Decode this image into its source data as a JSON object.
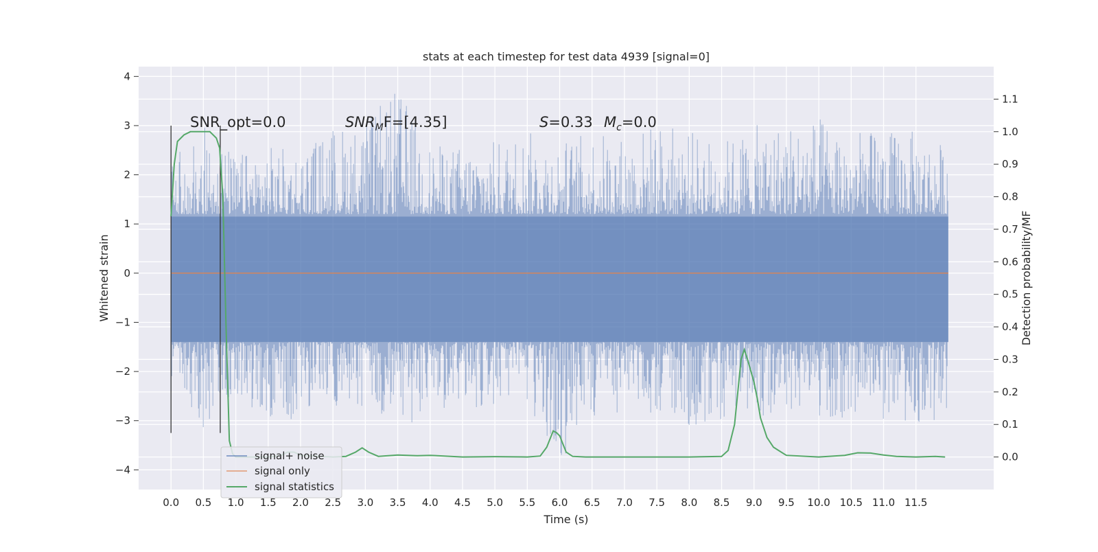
{
  "chart_data": {
    "type": "line",
    "title": "stats at each timestep for test data 4939 [signal=0]",
    "xlabel": "Time (s)",
    "ylabel": "Whitened strain",
    "y2label": "Detection probability/MF",
    "xlim": [
      -0.5,
      12.7
    ],
    "ylim": [
      -4.4,
      4.2
    ],
    "y2lim": [
      -0.1,
      1.2
    ],
    "x_ticks": [
      0.0,
      0.5,
      1.0,
      1.5,
      2.0,
      2.5,
      3.0,
      3.5,
      4.0,
      4.5,
      5.0,
      5.5,
      6.0,
      6.5,
      7.0,
      7.5,
      8.0,
      8.5,
      9.0,
      9.5,
      10.0,
      10.5,
      11.0,
      11.5
    ],
    "x_tick_labels": [
      "0.0",
      "0.5",
      "1.0",
      "1.5",
      "2.0",
      "2.5",
      "3.0",
      "3.5",
      "4.0",
      "4.5",
      "5.0",
      "5.5",
      "6.0",
      "6.5",
      "7.0",
      "7.5",
      "8.0",
      "8.5",
      "9.0",
      "9.5",
      "10.0",
      "10.5",
      "11.0",
      "11.5"
    ],
    "y_ticks": [
      -4,
      -3,
      -2,
      -1,
      0,
      1,
      2,
      3,
      4
    ],
    "y_tick_labels": [
      "−4",
      "−3",
      "−2",
      "−1",
      "0",
      "1",
      "2",
      "3",
      "4"
    ],
    "y2_ticks": [
      0.0,
      0.1,
      0.2,
      0.3,
      0.4,
      0.5,
      0.6,
      0.7,
      0.8,
      0.9,
      1.0,
      1.1
    ],
    "y2_tick_labels": [
      "0.0",
      "0.1",
      "0.2",
      "0.3",
      "0.4",
      "0.5",
      "0.6",
      "0.7",
      "0.8",
      "0.9",
      "1.0",
      "1.1"
    ],
    "grid": true,
    "legend_position": "lower-left",
    "colors": {
      "noise": "#4c72b0",
      "signal": "#dd8452",
      "stats": "#55a868",
      "background": "#eaeaf2",
      "grid": "#ffffff",
      "vline": "#333333"
    },
    "annotations": {
      "snr_opt": "SNR_opt=0.0",
      "snr_mf_prefix": "SNR",
      "snr_mf_sub": "M",
      "snr_mf_suffix": "F=[4.35]",
      "s_label": "S",
      "s_value": "=0.33",
      "mc_label": "M",
      "mc_sub": "c",
      "mc_value": "=0.0"
    },
    "vlines_x": [
      0.0,
      0.76
    ],
    "vlines_ylim": [
      -3.25,
      3.0
    ],
    "series": [
      {
        "name": "signal+ noise",
        "axis": "left",
        "x_range": [
          0.0,
          12.0
        ],
        "description_kind": "noise",
        "envelope": {
          "x": [
            0.0,
            0.5,
            1.0,
            1.5,
            2.0,
            2.5,
            3.0,
            3.5,
            4.0,
            4.5,
            5.0,
            5.5,
            6.0,
            6.5,
            7.0,
            7.5,
            8.0,
            8.5,
            9.0,
            9.5,
            10.0,
            10.5,
            11.0,
            11.5,
            12.0
          ],
          "upper": [
            2.4,
            3.0,
            2.4,
            2.6,
            2.5,
            3.0,
            3.1,
            3.8,
            2.6,
            2.6,
            2.7,
            2.9,
            2.7,
            2.9,
            2.8,
            3.1,
            2.9,
            2.7,
            3.0,
            3.1,
            3.2,
            2.9,
            2.9,
            2.9,
            2.6
          ],
          "lower": [
            -2.1,
            -3.3,
            -2.6,
            -3.0,
            -3.0,
            -2.7,
            -2.9,
            -3.3,
            -2.8,
            -2.8,
            -2.7,
            -2.8,
            -4.1,
            -3.0,
            -2.8,
            -2.9,
            -3.2,
            -3.0,
            -3.0,
            -2.9,
            -2.9,
            -3.0,
            -3.0,
            -3.1,
            -2.9
          ]
        }
      },
      {
        "name": "signal only",
        "axis": "left",
        "x": [
          0.0,
          12.0
        ],
        "y": [
          0.0,
          0.0
        ]
      },
      {
        "name": "signal statistics",
        "axis": "right",
        "x": [
          0.0,
          0.05,
          0.1,
          0.2,
          0.3,
          0.5,
          0.6,
          0.7,
          0.75,
          0.8,
          0.85,
          0.9,
          0.95,
          1.0,
          1.2,
          1.5,
          1.7,
          1.8,
          1.9,
          2.0,
          2.2,
          2.5,
          2.7,
          2.85,
          2.95,
          3.05,
          3.2,
          3.5,
          3.8,
          4.0,
          4.5,
          5.0,
          5.5,
          5.7,
          5.8,
          5.9,
          5.95,
          6.0,
          6.05,
          6.1,
          6.2,
          6.4,
          7.0,
          8.0,
          8.5,
          8.6,
          8.7,
          8.8,
          8.85,
          8.9,
          9.0,
          9.05,
          9.1,
          9.2,
          9.3,
          9.5,
          10.0,
          10.4,
          10.6,
          10.8,
          11.0,
          11.2,
          11.5,
          11.8,
          11.95
        ],
        "y": [
          0.74,
          0.9,
          0.97,
          0.99,
          1.0,
          1.0,
          1.0,
          0.98,
          0.95,
          0.8,
          0.4,
          0.05,
          0.01,
          0.0,
          0.0,
          0.0,
          0.005,
          0.015,
          0.015,
          0.005,
          0.003,
          0.0,
          0.002,
          0.015,
          0.028,
          0.015,
          0.002,
          0.006,
          0.004,
          0.005,
          0.0,
          0.001,
          0.0,
          0.003,
          0.03,
          0.08,
          0.075,
          0.065,
          0.04,
          0.015,
          0.002,
          0.0,
          0.0,
          0.0,
          0.002,
          0.02,
          0.1,
          0.3,
          0.33,
          0.3,
          0.23,
          0.18,
          0.12,
          0.06,
          0.03,
          0.005,
          0.0,
          0.005,
          0.013,
          0.012,
          0.006,
          0.002,
          0.0,
          0.002,
          0.0
        ]
      }
    ]
  }
}
